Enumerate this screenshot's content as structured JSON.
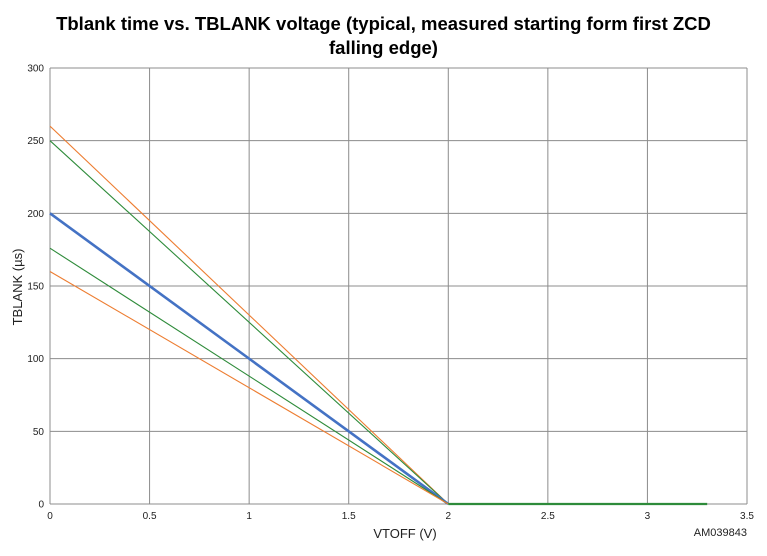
{
  "chart_data": {
    "type": "line",
    "title_line1": "Tblank time vs. TBLANK voltage (typical, measured starting form first ZCD",
    "title_line2": "falling edge)",
    "xlabel": "VTOFF (V)",
    "ylabel": "TBLANK (µs)",
    "xlim": [
      0,
      3.5
    ],
    "ylim": [
      0,
      300
    ],
    "x_ticks": [
      "0",
      "0.5",
      "1",
      "1.5",
      "2",
      "2.5",
      "3",
      "3.5"
    ],
    "y_ticks": [
      "0",
      "50",
      "100",
      "150",
      "200",
      "250",
      "300"
    ],
    "grid": true,
    "series": [
      {
        "color": "#ed7d31",
        "width": 1.1,
        "points": [
          [
            0,
            260
          ],
          [
            2,
            0
          ]
        ]
      },
      {
        "color": "#2e8b3a",
        "width": 1.1,
        "points": [
          [
            0,
            250
          ],
          [
            2,
            0
          ]
        ]
      },
      {
        "color": "#4472c4",
        "width": 2.6,
        "points": [
          [
            0,
            200
          ],
          [
            2,
            0
          ]
        ]
      },
      {
        "color": "#2e8b3a",
        "width": 1.1,
        "points": [
          [
            0,
            176
          ],
          [
            2,
            0
          ]
        ]
      },
      {
        "color": "#ed7d31",
        "width": 1.1,
        "points": [
          [
            0,
            160
          ],
          [
            2,
            0
          ]
        ]
      },
      {
        "color": "#2e8b3a",
        "width": 2.2,
        "points": [
          [
            2,
            0
          ],
          [
            3.3,
            0
          ]
        ]
      }
    ]
  },
  "figure_code": "AM039843"
}
